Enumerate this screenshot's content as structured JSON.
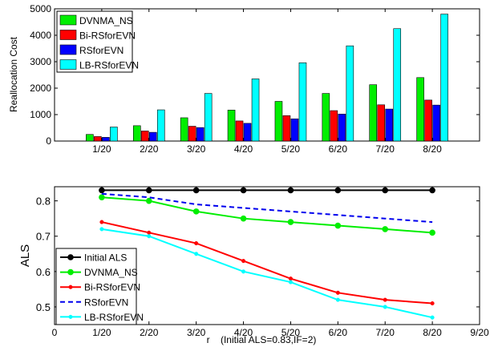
{
  "chart_data": [
    {
      "type": "bar",
      "title": "",
      "xlabel": "",
      "ylabel": "Reallocation Cost",
      "categories": [
        "1/20",
        "2/20",
        "3/20",
        "4/20",
        "5/20",
        "6/20",
        "7/20",
        "8/20"
      ],
      "ylim": [
        0,
        5000
      ],
      "yticks": [
        0,
        1000,
        2000,
        3000,
        4000,
        5000
      ],
      "grid": false,
      "legend": "top-left",
      "series": [
        {
          "name": "DVNMA_NS",
          "color": "#00ee00",
          "values": [
            250,
            580,
            880,
            1170,
            1500,
            1800,
            2130,
            2400
          ]
        },
        {
          "name": "Bi-RSforEVN",
          "color": "#ff0000",
          "values": [
            170,
            380,
            560,
            760,
            960,
            1150,
            1370,
            1550
          ]
        },
        {
          "name": "RSforEVN",
          "color": "#0000ff",
          "values": [
            140,
            330,
            510,
            670,
            840,
            1020,
            1210,
            1360
          ]
        },
        {
          "name": "LB-RSforEVN",
          "color": "#00ffff",
          "values": [
            530,
            1180,
            1800,
            2350,
            2960,
            3600,
            4250,
            4800
          ]
        }
      ]
    },
    {
      "type": "line",
      "title": "",
      "xlabel": "r    (Initial ALS=0.83,IF=2)",
      "ylabel": "ALS",
      "x": [
        1,
        2,
        3,
        4,
        5,
        6,
        7,
        8
      ],
      "xticks": [
        0,
        1,
        2,
        3,
        4,
        5,
        6,
        7,
        8,
        9
      ],
      "xticklabels": [
        "0",
        "1/20",
        "2/20",
        "3/20",
        "4/20",
        "5/20",
        "6/20",
        "7/20",
        "8/20",
        "9/20"
      ],
      "xlim": [
        0,
        9
      ],
      "ylim": [
        0.45,
        0.84
      ],
      "yticks": [
        0.5,
        0.6,
        0.7,
        0.8
      ],
      "yticklabels": [
        "0.5",
        "0.6",
        "0.7",
        "0.8"
      ],
      "grid": false,
      "legend": "bottom-left",
      "series": [
        {
          "name": "Initial ALS",
          "color": "#000000",
          "style": "solid",
          "marker": "circle",
          "values": [
            0.83,
            0.83,
            0.83,
            0.83,
            0.83,
            0.83,
            0.83,
            0.83
          ]
        },
        {
          "name": "DVNMA_NS",
          "color": "#00ee00",
          "style": "solid",
          "marker": "circle",
          "values": [
            0.81,
            0.8,
            0.77,
            0.75,
            0.74,
            0.73,
            0.72,
            0.71
          ]
        },
        {
          "name": "Bi-RSforEVN",
          "color": "#ff0000",
          "style": "solid",
          "marker": "dot",
          "values": [
            0.74,
            0.71,
            0.68,
            0.63,
            0.58,
            0.54,
            0.52,
            0.51
          ]
        },
        {
          "name": "RSforEVN",
          "color": "#0000ee",
          "style": "dashed",
          "marker": "none",
          "values": [
            0.82,
            0.81,
            0.79,
            0.78,
            0.77,
            0.76,
            0.75,
            0.74
          ]
        },
        {
          "name": "LB-RSforEVN",
          "color": "#00ffff",
          "style": "solid",
          "marker": "dot",
          "values": [
            0.72,
            0.7,
            0.65,
            0.6,
            0.57,
            0.52,
            0.5,
            0.47
          ]
        }
      ]
    }
  ]
}
